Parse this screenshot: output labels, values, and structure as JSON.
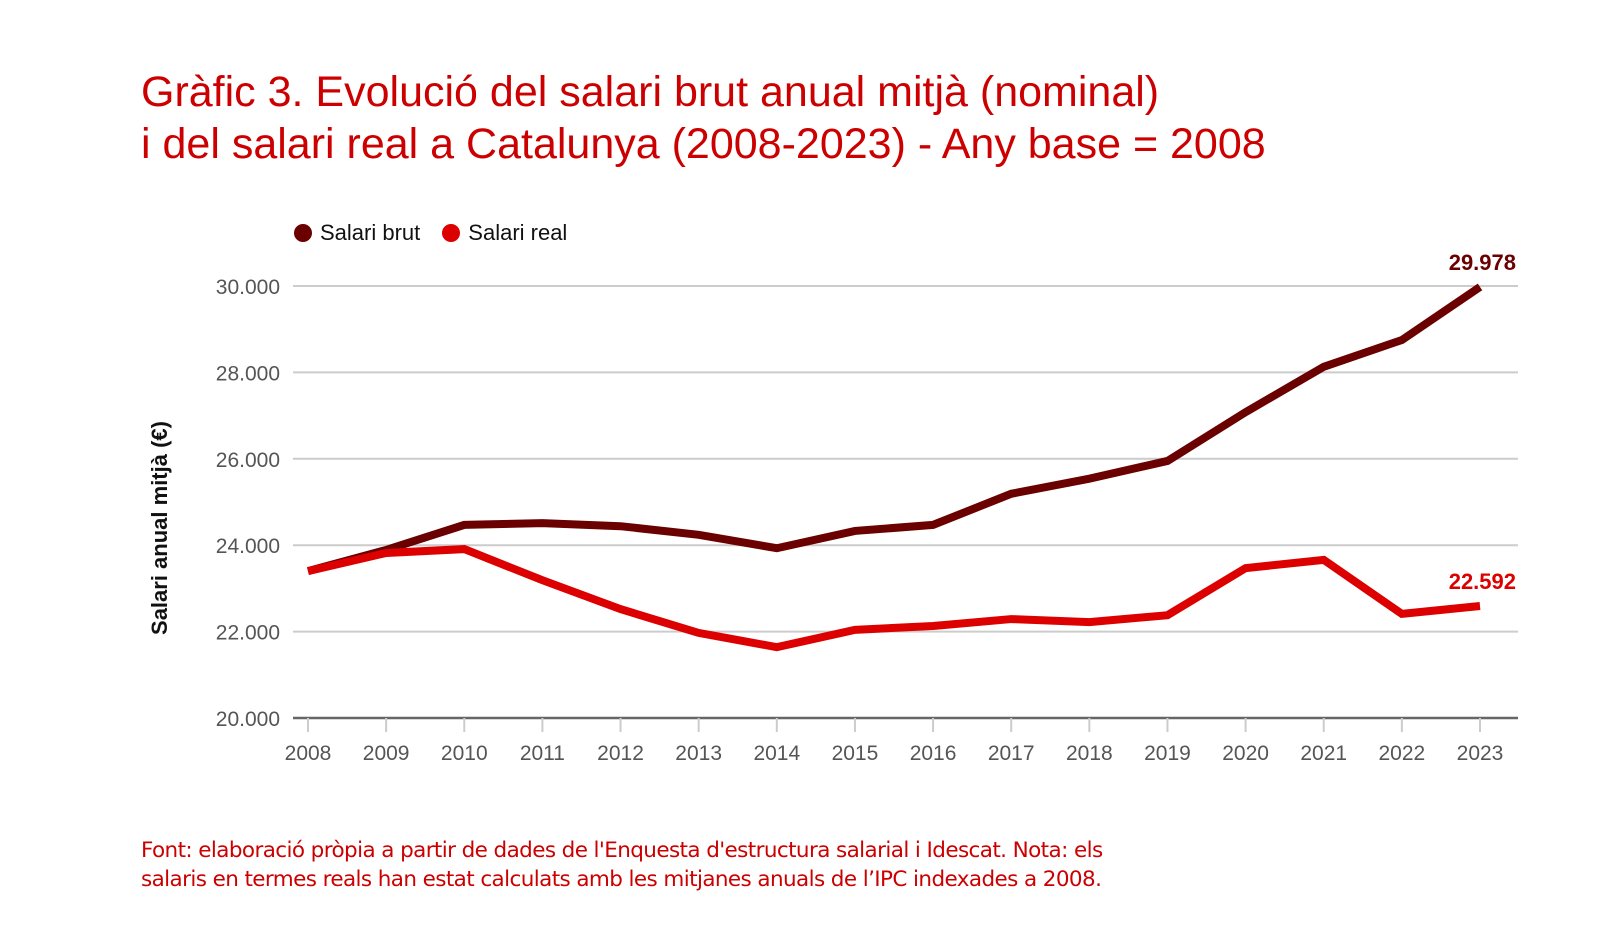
{
  "chart_data": {
    "type": "line",
    "title_lines": [
      "Gràfic 3. Evolució del salari brut anual mitjà (nominal)",
      "i del salari real a Catalunya (2008-2023) - Any base = 2008"
    ],
    "xlabel": "",
    "ylabel": "Salari anual mitjà (€)",
    "ylim": [
      20000,
      30000
    ],
    "yticks": [
      20000,
      22000,
      24000,
      26000,
      28000,
      30000
    ],
    "ytick_labels": [
      "20.000",
      "22.000",
      "24.000",
      "26.000",
      "28.000",
      "30.000"
    ],
    "grid": true,
    "legend_position": "top-left",
    "x": [
      "2008",
      "2009",
      "2010",
      "2011",
      "2012",
      "2013",
      "2014",
      "2015",
      "2016",
      "2017",
      "2018",
      "2019",
      "2020",
      "2021",
      "2022",
      "2023"
    ],
    "series": [
      {
        "name": "Salari brut",
        "color": "#6b0000",
        "values": [
          23400,
          23890,
          24470,
          24510,
          24440,
          24240,
          23930,
          24330,
          24470,
          25190,
          25540,
          25950,
          27080,
          28130,
          28750,
          29978
        ],
        "end_label": "29.978"
      },
      {
        "name": "Salari real",
        "color": "#dd0000",
        "values": [
          23400,
          23820,
          23910,
          23190,
          22520,
          21970,
          21640,
          22040,
          22130,
          22290,
          22220,
          22380,
          23470,
          23660,
          22410,
          22592
        ],
        "end_label": "22.592"
      }
    ]
  },
  "footnote_lines": [
    "Font: elaboració pròpia a partir de dades de l'Enquesta d'estructura salarial i Idescat. Nota: els",
    "salaris en termes reals han estat calculats amb les mitjanes anuals de l’IPC indexades a 2008."
  ]
}
